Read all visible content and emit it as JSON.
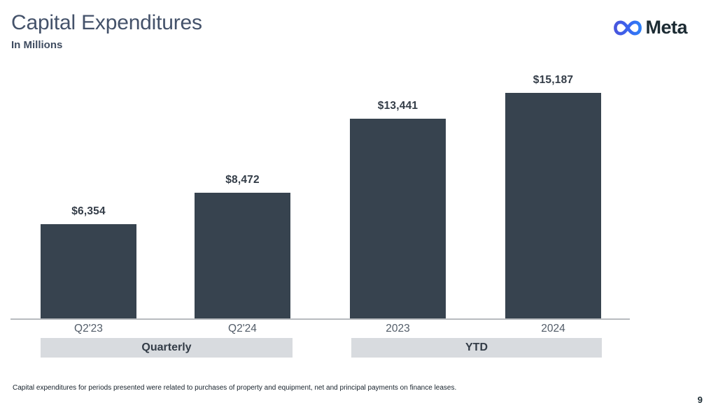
{
  "header": {
    "title": "Capital Expenditures",
    "subtitle": "In Millions"
  },
  "logo": {
    "brand": "Meta"
  },
  "chart_data": {
    "type": "bar",
    "title": "Capital Expenditures",
    "subtitle": "In Millions",
    "categories": [
      "Q2'23",
      "Q2'24",
      "2023",
      "2024"
    ],
    "values": [
      6354,
      8472,
      13441,
      15187
    ],
    "value_labels": [
      "$6,354",
      "$8,472",
      "$13,441",
      "$15,187"
    ],
    "groups": [
      {
        "label": "Quarterly",
        "categories": [
          "Q2'23",
          "Q2'24"
        ]
      },
      {
        "label": "YTD",
        "categories": [
          "2023",
          "2024"
        ]
      }
    ],
    "xlabel": "",
    "ylabel": "",
    "ylim": [
      0,
      15900
    ],
    "gridlines": false,
    "legend": "none",
    "bar_color": "#37434f"
  },
  "footnote": "Capital expenditures for periods presented were related to purchases of property and equipment, net and principal payments on finance leases.",
  "page_number": "9",
  "colors": {
    "bar": "#37434f",
    "band_bg": "#d8dbdf",
    "title": "#44526a",
    "text_dark": "#1c2b33",
    "axis_line": "#b8bbbf",
    "logo_gradient_start": "#4856dd",
    "logo_gradient_end": "#2e7ef7"
  }
}
